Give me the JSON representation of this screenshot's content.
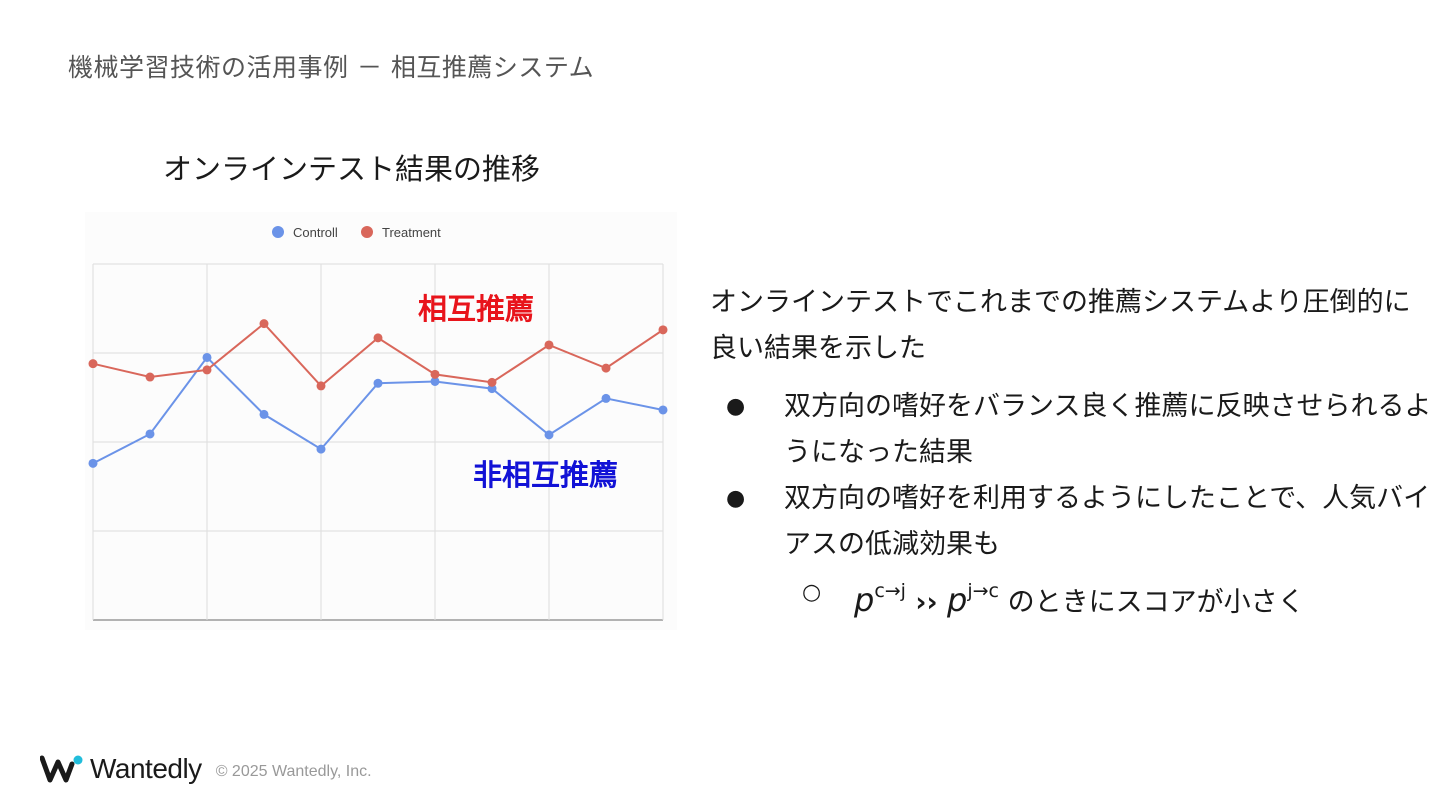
{
  "slide": {
    "title": "機械学習技術の活用事例 － 相互推薦システム",
    "chart_title": "オンラインテスト結果の推移",
    "label_mutual": "相互推薦",
    "label_nonmutual": "非相互推薦",
    "colors": {
      "mutual_label": "#e8141b",
      "nonmutual_label": "#1212d6"
    }
  },
  "body": {
    "intro": "オンラインテストでこれまでの推薦システムより圧倒的に良い結果を示した",
    "bullets": [
      "双方向の嗜好をバランス良く推薦に反映させられるようになった結果",
      "双方向の嗜好を利用するようにしたことで、人気バイアスの低減効果も"
    ],
    "sub_bullet": {
      "p1": "p",
      "p1_sup": "c→j",
      "op": " ›› ",
      "p2": "p",
      "p2_sup": "j→c",
      "text": " のときにスコアが小さく"
    }
  },
  "footer": {
    "brand": "Wantedly",
    "copyright": "© 2025 Wantedly, Inc."
  },
  "chart_data": {
    "type": "line",
    "x": [
      1,
      2,
      3,
      4,
      5,
      6,
      7,
      8,
      9,
      10,
      11
    ],
    "ylim": [
      0,
      4
    ],
    "grid": true,
    "legend_position": "top-center",
    "xlabel": "",
    "ylabel": "",
    "series": [
      {
        "name": "Controll",
        "color": "#6b93e8",
        "values": [
          1.76,
          2.09,
          2.95,
          2.31,
          1.92,
          2.66,
          2.68,
          2.6,
          2.08,
          2.49,
          2.36
        ]
      },
      {
        "name": "Treatment",
        "color": "#d9675b",
        "values": [
          2.88,
          2.73,
          2.81,
          3.33,
          2.63,
          3.17,
          2.76,
          2.67,
          3.09,
          2.83,
          3.26
        ]
      }
    ]
  }
}
